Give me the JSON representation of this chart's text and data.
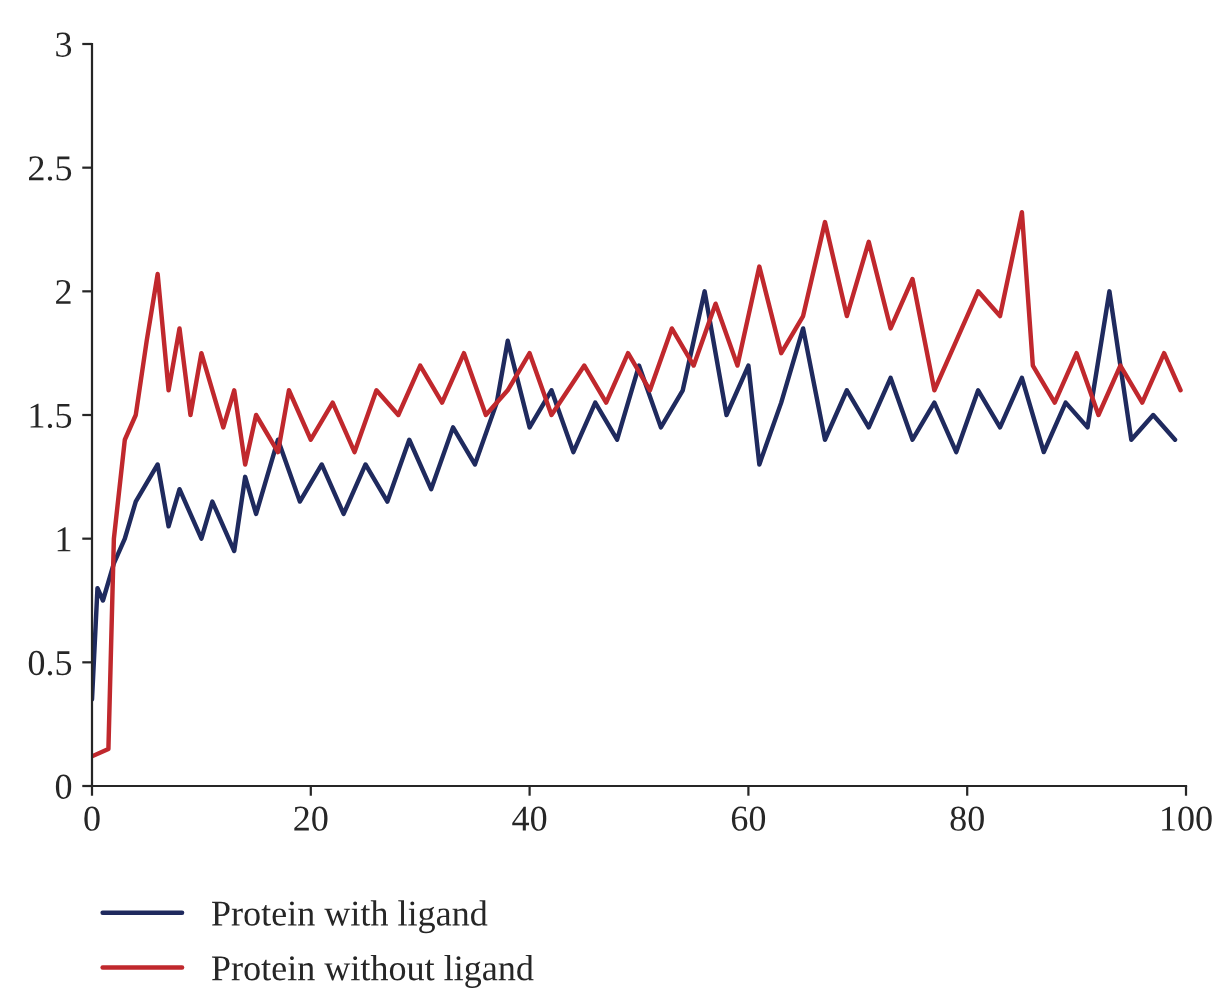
{
  "chart_data": {
    "type": "line",
    "xlim": [
      0,
      100
    ],
    "ylim": [
      0,
      3
    ],
    "xticks": [
      0,
      20,
      40,
      60,
      80,
      100
    ],
    "yticks": [
      0,
      0.5,
      1,
      1.5,
      2,
      2.5,
      3
    ],
    "grid": false,
    "legend": "bottom",
    "marker": "none",
    "line_style": "solid",
    "series": [
      {
        "name": "Protein with ligand",
        "color": "#1f2a5e",
        "x": [
          0,
          0.5,
          1,
          2,
          3,
          4,
          6,
          7,
          8,
          10,
          11,
          13,
          14,
          15,
          17,
          19,
          21,
          23,
          25,
          27,
          29,
          31,
          33,
          35,
          37,
          38,
          40,
          42,
          44,
          46,
          48,
          50,
          52,
          54,
          56,
          58,
          60,
          61,
          63,
          65,
          67,
          69,
          71,
          73,
          75,
          77,
          79,
          81,
          83,
          85,
          87,
          89,
          91,
          93,
          95,
          97,
          99
        ],
        "values": [
          0.35,
          0.8,
          0.75,
          0.9,
          1.0,
          1.15,
          1.3,
          1.05,
          1.2,
          1.0,
          1.15,
          0.95,
          1.25,
          1.1,
          1.4,
          1.15,
          1.3,
          1.1,
          1.3,
          1.15,
          1.4,
          1.2,
          1.45,
          1.3,
          1.55,
          1.8,
          1.45,
          1.6,
          1.35,
          1.55,
          1.4,
          1.7,
          1.45,
          1.6,
          2.0,
          1.5,
          1.7,
          1.3,
          1.55,
          1.85,
          1.4,
          1.6,
          1.45,
          1.65,
          1.4,
          1.55,
          1.35,
          1.6,
          1.45,
          1.65,
          1.35,
          1.55,
          1.45,
          2.0,
          1.4,
          1.5,
          1.4
        ]
      },
      {
        "name": "Protein without ligand",
        "color": "#c0282d",
        "x": [
          0,
          1.5,
          2,
          3,
          4,
          5,
          6,
          7,
          8,
          9,
          10,
          12,
          13,
          14,
          15,
          17,
          18,
          20,
          22,
          24,
          26,
          28,
          30,
          32,
          34,
          36,
          38,
          40,
          42,
          45,
          47,
          49,
          51,
          53,
          55,
          57,
          59,
          61,
          63,
          65,
          67,
          69,
          71,
          73,
          75,
          77,
          79,
          81,
          83,
          85,
          86,
          88,
          90,
          92,
          94,
          96,
          98,
          99.5
        ],
        "values": [
          0.12,
          0.15,
          1.0,
          1.4,
          1.5,
          1.8,
          2.07,
          1.6,
          1.85,
          1.5,
          1.75,
          1.45,
          1.6,
          1.3,
          1.5,
          1.35,
          1.6,
          1.4,
          1.55,
          1.35,
          1.6,
          1.5,
          1.7,
          1.55,
          1.75,
          1.5,
          1.6,
          1.75,
          1.5,
          1.7,
          1.55,
          1.75,
          1.6,
          1.85,
          1.7,
          1.95,
          1.7,
          2.1,
          1.75,
          1.9,
          2.28,
          1.9,
          2.2,
          1.85,
          2.05,
          1.6,
          1.8,
          2.0,
          1.9,
          2.32,
          1.7,
          1.55,
          1.75,
          1.5,
          1.7,
          1.55,
          1.75,
          1.6
        ]
      }
    ]
  }
}
